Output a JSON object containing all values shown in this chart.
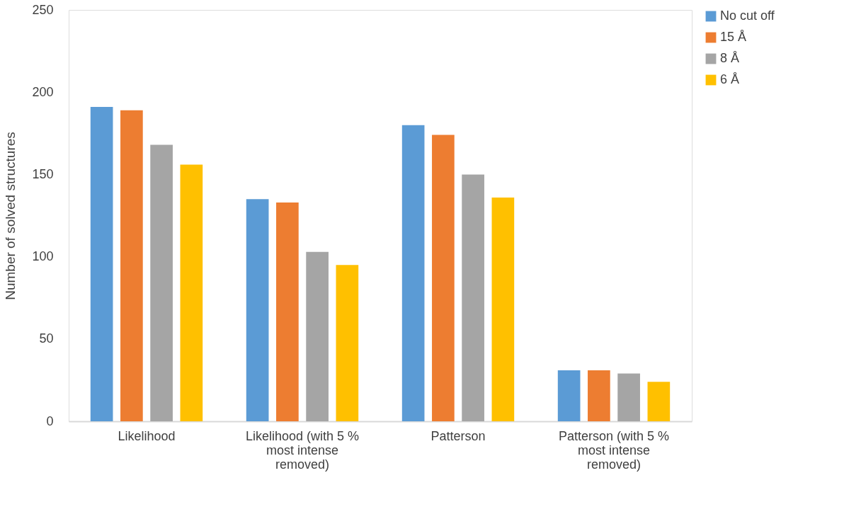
{
  "chart_data": {
    "type": "bar",
    "ylabel": "Number of solved structures",
    "categories": [
      "Likelihood",
      "Likelihood (with 5 % most intense removed)",
      "Patterson",
      "Patterson (with 5 % most intense removed)"
    ],
    "series": [
      {
        "name": "No cut off",
        "color": "#5b9bd5",
        "values": [
          191,
          135,
          180,
          31
        ]
      },
      {
        "name": "15 Å",
        "color": "#ed7d31",
        "values": [
          189,
          133,
          174,
          31
        ]
      },
      {
        "name": "8 Å",
        "color": "#a5a5a5",
        "values": [
          168,
          103,
          150,
          29
        ]
      },
      {
        "name": "6 Å",
        "color": "#ffc000",
        "values": [
          156,
          95,
          136,
          24
        ]
      }
    ],
    "ylim": [
      0,
      250
    ],
    "yticks": [
      0,
      50,
      100,
      150,
      200,
      250
    ],
    "grid": false,
    "legend": "right"
  }
}
